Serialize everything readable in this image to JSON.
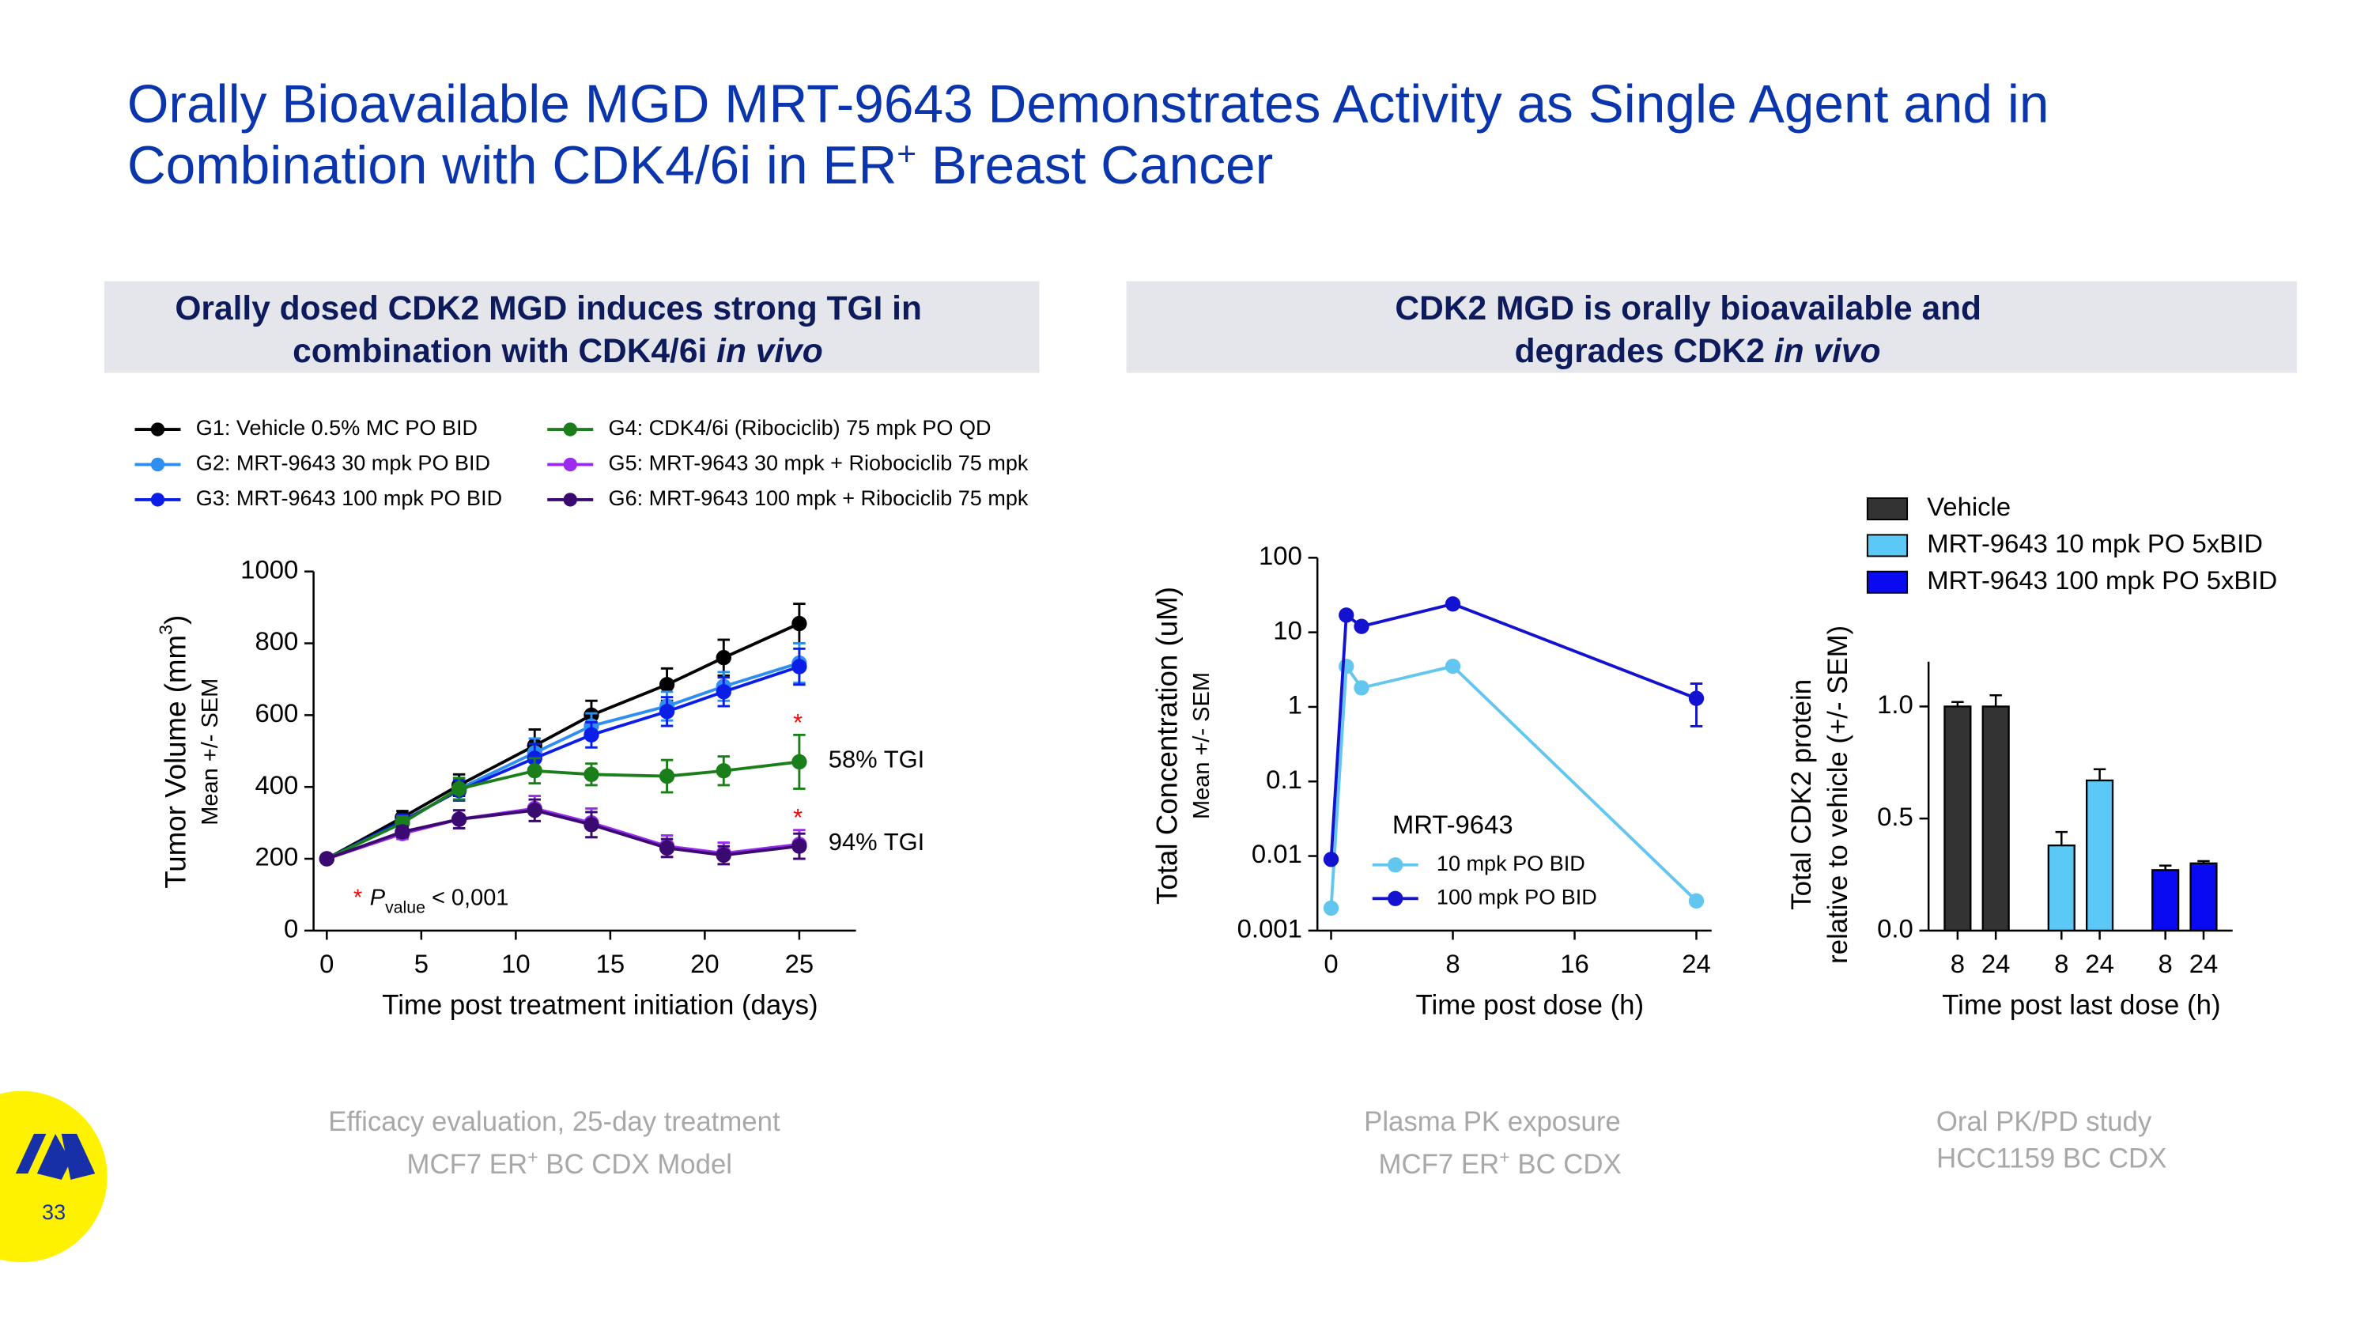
{
  "title": [
    "Orally Bioavailable MGD MRT-9643 Demonstrates Activity as Single Agent and in",
    "Combination with CDK4/6i in ER",
    "+",
    " Breast Cancer"
  ],
  "sections": [
    {
      "lines": [
        "Orally dosed CDK2 MGD induces strong TGI in",
        "combination with CDK4/6i ",
        "in vivo"
      ]
    },
    {
      "lines": [
        "CDK2 MGD is orally bioavailable and",
        "degrades CDK2 ",
        "in vivo"
      ]
    }
  ],
  "captions": [
    [
      "Efficacy evaluation, 25-day treatment",
      "MCF7 ER",
      "+",
      " BC CDX Model"
    ],
    [
      "Plasma PK exposure",
      "MCF7 ER",
      "+",
      " BC CDX"
    ],
    [
      "Oral PK/PD study",
      "HCC1159 BC CDX"
    ]
  ],
  "page_number": "33",
  "chart_data": [
    {
      "type": "line",
      "x": [
        0,
        4,
        7,
        11,
        14,
        18,
        21,
        25
      ],
      "xlim": [
        -0.7,
        28
      ],
      "xticks": [
        0,
        5,
        10,
        15,
        20,
        25
      ],
      "ylim": [
        0,
        1000
      ],
      "yticks": [
        0,
        200,
        400,
        600,
        800,
        1000
      ],
      "xlabel": "Time post treatment initiation (days)",
      "ylabel": [
        "Tumor Volume (mm",
        "3",
        ")"
      ],
      "ylabel_note": "Mean +/- SEM",
      "series": [
        {
          "name": "G1: Vehicle 0.5% MC PO BID",
          "color": "#000000",
          "values": [
            200,
            315,
            405,
            515,
            600,
            685,
            760,
            855
          ],
          "errors": [
            10,
            18,
            30,
            45,
            40,
            45,
            50,
            55
          ]
        },
        {
          "name": "G2: MRT-9643 30 mpk PO BID",
          "color": "#2f8ff0",
          "values": [
            200,
            300,
            395,
            495,
            570,
            625,
            680,
            745
          ],
          "errors": [
            10,
            18,
            30,
            40,
            35,
            40,
            40,
            55
          ]
        },
        {
          "name": "G3: MRT-9643 100 mpk PO BID",
          "color": "#0a1ee8",
          "values": [
            200,
            305,
            390,
            480,
            545,
            610,
            665,
            735
          ],
          "errors": [
            10,
            18,
            28,
            40,
            35,
            40,
            40,
            50
          ]
        },
        {
          "name": "G4: CDK4/6i (Ribociclib) 75 mpk PO QD",
          "color": "#1a7f1a",
          "values": [
            200,
            300,
            395,
            445,
            435,
            430,
            445,
            470
          ],
          "errors": [
            10,
            18,
            30,
            35,
            30,
            45,
            40,
            75
          ]
        },
        {
          "name": "G5: MRT-9643 30 mpk + Riobociclib 75 mpk",
          "color": "#9a2cf0",
          "values": [
            200,
            270,
            310,
            340,
            300,
            235,
            215,
            240
          ],
          "errors": [
            10,
            15,
            25,
            35,
            40,
            30,
            30,
            40
          ]
        },
        {
          "name": "G6: MRT-9643 100 mpk + Ribociclib 75 mpk",
          "color": "#3b0a70",
          "values": [
            200,
            275,
            310,
            335,
            295,
            230,
            210,
            235
          ],
          "errors": [
            10,
            15,
            25,
            30,
            35,
            25,
            25,
            35
          ]
        }
      ],
      "annotations": [
        "*",
        "58% TGI",
        "*",
        "94% TGI"
      ],
      "footnote": [
        "*",
        "P",
        "value",
        " < 0,001"
      ]
    },
    {
      "type": "line",
      "yscale": "log",
      "x": [
        0,
        1,
        2,
        8,
        24
      ],
      "xlim": [
        -0.9,
        25
      ],
      "xticks": [
        0,
        8,
        16,
        24
      ],
      "ylim": [
        0.001,
        100
      ],
      "yticks": [
        0.001,
        0.01,
        0.1,
        1,
        10,
        100
      ],
      "xlabel": "Time post dose (h)",
      "ylabel": "Total Concentration (uM)",
      "ylabel_note": "Mean +/- SEM",
      "legend_title": "MRT-9643",
      "series": [
        {
          "name": "10 mpk PO BID",
          "color": "#62c6f0",
          "values": [
            0.002,
            3.5,
            1.8,
            3.5,
            0.0025
          ],
          "errors": [
            null,
            null,
            null,
            null,
            null
          ]
        },
        {
          "name": "100 mpk PO BID",
          "color": "#1212d0",
          "values": [
            0.009,
            17,
            12,
            24,
            1.3
          ],
          "errors": [
            null,
            null,
            null,
            null,
            0.75
          ]
        }
      ]
    },
    {
      "type": "bar",
      "categories": [
        "8",
        "24"
      ],
      "ylim": [
        0,
        1.2
      ],
      "yticks": [
        {
          "value": 0,
          "label": "0.0"
        },
        {
          "value": 0.5,
          "label": "0.5"
        },
        {
          "value": 1,
          "label": "1.0"
        }
      ],
      "xlabel": "Time post last dose (h)",
      "ylabel": [
        "Total CDK2 protein",
        "relative to vehicle (+/- SEM)"
      ],
      "series": [
        {
          "name": "Vehicle",
          "color": "#333333",
          "values": [
            1.0,
            1.0
          ],
          "errors": [
            0.02,
            0.05
          ]
        },
        {
          "name": "MRT-9643 10 mpk PO 5xBID",
          "color": "#5bc8f5",
          "values": [
            0.38,
            0.67
          ],
          "errors": [
            0.06,
            0.05
          ]
        },
        {
          "name": "MRT-9643 100 mpk PO 5xBID",
          "color": "#0a0af0",
          "values": [
            0.27,
            0.3
          ],
          "errors": [
            0.02,
            0.01
          ]
        }
      ]
    }
  ]
}
